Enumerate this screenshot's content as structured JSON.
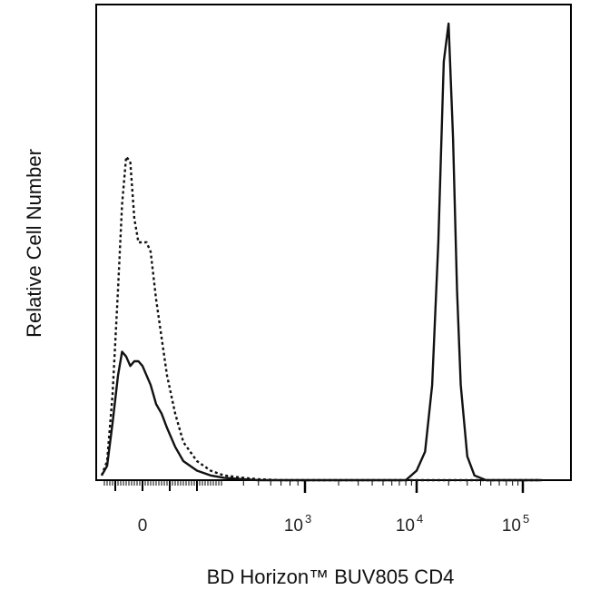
{
  "chart_data": {
    "type": "line",
    "title": "",
    "xlabel": "BD Horizon™ BUV805 CD4",
    "ylabel": "Relative Cell Number",
    "x_scale": "biexponential",
    "xlim": [
      -150,
      150000
    ],
    "ylim": [
      0,
      1
    ],
    "grid": false,
    "legend": "none",
    "x_tick_labels": [
      {
        "value": 0,
        "base": "0",
        "exp": ""
      },
      {
        "value": 1000,
        "base": "10",
        "exp": "3"
      },
      {
        "value": 10000,
        "base": "10",
        "exp": "4"
      },
      {
        "value": 100000,
        "base": "10",
        "exp": "5"
      }
    ],
    "series": [
      {
        "style": "dotted",
        "color": "#111111",
        "x": [
          -150,
          -130,
          -110,
          -90,
          -75,
          -60,
          -45,
          -30,
          -15,
          0,
          15,
          30,
          50,
          70,
          90,
          120,
          150,
          200,
          250,
          300,
          400,
          500,
          700,
          1000,
          3000,
          10000,
          30000,
          100000,
          150000
        ],
        "y": [
          0.01,
          0.04,
          0.18,
          0.4,
          0.58,
          0.68,
          0.67,
          0.55,
          0.5,
          0.5,
          0.5,
          0.48,
          0.38,
          0.3,
          0.22,
          0.14,
          0.08,
          0.04,
          0.02,
          0.01,
          0.005,
          0.002,
          0,
          0,
          0,
          0,
          0,
          0,
          0
        ]
      },
      {
        "style": "solid",
        "color": "#111111",
        "x": [
          -150,
          -130,
          -110,
          -90,
          -75,
          -60,
          -45,
          -30,
          -15,
          0,
          15,
          30,
          50,
          70,
          90,
          120,
          150,
          200,
          250,
          300,
          400,
          500,
          700,
          1000,
          3000,
          8000,
          10000,
          12000,
          14000,
          16000,
          18000,
          20000,
          22000,
          24000,
          26000,
          30000,
          35000,
          45000,
          60000,
          100000,
          150000
        ],
        "y": [
          0.01,
          0.03,
          0.12,
          0.22,
          0.27,
          0.26,
          0.24,
          0.25,
          0.25,
          0.24,
          0.22,
          0.2,
          0.16,
          0.14,
          0.11,
          0.07,
          0.04,
          0.02,
          0.01,
          0.005,
          0.002,
          0,
          0,
          0,
          0,
          0,
          0.02,
          0.06,
          0.2,
          0.5,
          0.88,
          0.96,
          0.72,
          0.4,
          0.2,
          0.05,
          0.01,
          0,
          0,
          0,
          0
        ]
      }
    ]
  }
}
